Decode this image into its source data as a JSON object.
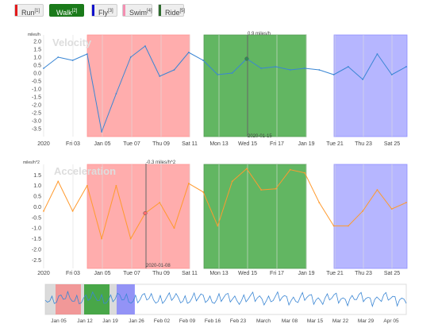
{
  "legend": [
    {
      "label": "Run",
      "key": "[1]",
      "color": "#e31a1c",
      "active": false
    },
    {
      "label": "Walk",
      "key": "[2]",
      "color": "#1a7a1a",
      "active": true
    },
    {
      "label": "Fly",
      "key": "[3]",
      "color": "#1111cc",
      "active": false
    },
    {
      "label": "Swim",
      "key": "[4]",
      "color": "#f48fb1",
      "active": false
    },
    {
      "label": "Ride",
      "key": "[5]",
      "color": "#2e6b2e",
      "active": false
    }
  ],
  "colors": {
    "run": "#ff6b6b",
    "walk": "#2e9e2e",
    "fly": "#7b7bff",
    "velocity": "#3a86d4",
    "acceleration": "#ff9a2e"
  },
  "x_ticks": [
    "2020",
    "Fri 03",
    "Jan 05",
    "Tue 07",
    "Thu 09",
    "Sat 11",
    "Mon 13",
    "Wed 15",
    "Fri 17",
    "Jan 19",
    "Tue 21",
    "Thu 23",
    "Sat 25"
  ],
  "velocity": {
    "title": "Velocity",
    "unit": "miles/h",
    "y_ticks": [
      "2.0",
      "1.5",
      "1.0",
      "0.5",
      "0.0",
      "-0.5",
      "-1.0",
      "-1.5",
      "-2.0",
      "-2.5",
      "-3.0",
      "-3.5"
    ],
    "hover_value": "0.9 miles/h",
    "hover_date": "2020-01-15"
  },
  "acceleration": {
    "title": "Acceleration",
    "unit": "miles/h^2",
    "y_ticks": [
      "1.5",
      "1.0",
      "0.5",
      "0.0",
      "-0.5",
      "-1.0",
      "-1.5",
      "-2.0",
      "-2.5"
    ],
    "hover_value": "-0.3 miles/h^2",
    "hover_date": "2020-01-08"
  },
  "overview": {
    "x_ticks": [
      "Jan 05",
      "Jan 12",
      "Jan 19",
      "Jan 26",
      "Feb 02",
      "Feb 09",
      "Feb 16",
      "Feb 23",
      "March",
      "Mar 08",
      "Mar 15",
      "Mar 22",
      "Mar 29",
      "Apr 05"
    ]
  },
  "chart_data": [
    {
      "type": "line",
      "title": "Velocity",
      "ylabel": "miles/h",
      "x": [
        "2020-01-01",
        "2020-01-02",
        "2020-01-03",
        "2020-01-04",
        "2020-01-05",
        "2020-01-06",
        "2020-01-07",
        "2020-01-08",
        "2020-01-09",
        "2020-01-10",
        "2020-01-11",
        "2020-01-12",
        "2020-01-13",
        "2020-01-14",
        "2020-01-15",
        "2020-01-16",
        "2020-01-17",
        "2020-01-18",
        "2020-01-19",
        "2020-01-20",
        "2020-01-21",
        "2020-01-22",
        "2020-01-23",
        "2020-01-24",
        "2020-01-25",
        "2020-01-26"
      ],
      "series": [
        {
          "values": [
            0.3,
            1.0,
            0.8,
            1.2,
            -3.7,
            -1.3,
            1.0,
            1.7,
            -0.2,
            0.2,
            1.3,
            0.8,
            -0.1,
            0.0,
            0.9,
            0.3,
            0.4,
            0.2,
            0.3,
            0.2,
            -0.1,
            0.4,
            -0.4,
            1.2,
            -0.1,
            0.4
          ]
        }
      ],
      "ylim": [
        -4.0,
        2.4
      ]
    },
    {
      "type": "line",
      "title": "Acceleration",
      "ylabel": "miles/h^2",
      "x": [
        "2020-01-01",
        "2020-01-02",
        "2020-01-03",
        "2020-01-04",
        "2020-01-05",
        "2020-01-06",
        "2020-01-07",
        "2020-01-08",
        "2020-01-09",
        "2020-01-10",
        "2020-01-11",
        "2020-01-12",
        "2020-01-13",
        "2020-01-14",
        "2020-01-15",
        "2020-01-16",
        "2020-01-17",
        "2020-01-18",
        "2020-01-19",
        "2020-01-20",
        "2020-01-21",
        "2020-01-22",
        "2020-01-23",
        "2020-01-24",
        "2020-01-25",
        "2020-01-26"
      ],
      "series": [
        {
          "values": [
            -0.2,
            1.2,
            -0.2,
            1.0,
            -1.5,
            1.0,
            -1.5,
            -0.3,
            0.2,
            -1.0,
            1.1,
            0.7,
            -0.9,
            1.2,
            1.8,
            0.8,
            0.85,
            1.75,
            1.6,
            0.2,
            -0.9,
            -0.9,
            -0.2,
            0.8,
            -0.1,
            0.2
          ]
        }
      ],
      "ylim": [
        -2.9,
        2.0
      ]
    }
  ]
}
